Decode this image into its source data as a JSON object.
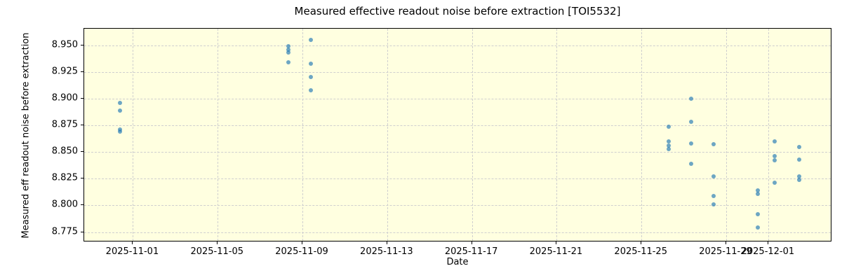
{
  "chart_data": {
    "type": "scatter",
    "title": "Measured effective readout noise before extraction [TOI5532]",
    "xlabel": "Date",
    "ylabel": "Measured eff readout noise before extraction",
    "grid": "dashed",
    "legend": "none",
    "x_axis": {
      "unit": "days since 2025-11-01",
      "range": [
        -2.3,
        33.0
      ],
      "ticks": [
        {
          "label": "2025-11-01",
          "day": 0
        },
        {
          "label": "2025-11-05",
          "day": 4
        },
        {
          "label": "2025-11-09",
          "day": 8
        },
        {
          "label": "2025-11-13",
          "day": 12
        },
        {
          "label": "2025-11-17",
          "day": 16
        },
        {
          "label": "2025-11-21",
          "day": 20
        },
        {
          "label": "2025-11-25",
          "day": 24
        },
        {
          "label": "2025-11-29",
          "day": 28
        },
        {
          "label": "2025-12-01",
          "day": 30
        }
      ]
    },
    "y_axis": {
      "range": [
        8.7655,
        8.9655
      ],
      "ticks": [
        {
          "label": "8.775",
          "value": 8.775
        },
        {
          "label": "8.800",
          "value": 8.8
        },
        {
          "label": "8.825",
          "value": 8.825
        },
        {
          "label": "8.850",
          "value": 8.85
        },
        {
          "label": "8.875",
          "value": 8.875
        },
        {
          "label": "8.900",
          "value": 8.9
        },
        {
          "label": "8.925",
          "value": 8.925
        },
        {
          "label": "8.950",
          "value": 8.95
        }
      ]
    },
    "series": [
      {
        "name": "measured-readout-noise",
        "groups": [
          {
            "date": "2025-10-31",
            "day": -0.6,
            "values": [
              8.896,
              8.889,
              8.871,
              8.869
            ]
          },
          {
            "date": "2025-11-08",
            "day": 7.35,
            "values": [
              8.949,
              8.946,
              8.943,
              8.934
            ]
          },
          {
            "date": "2025-11-09",
            "day": 8.4,
            "values": [
              8.955,
              8.933,
              8.92,
              8.908
            ]
          },
          {
            "date": "2025-11-26",
            "day": 25.3,
            "values": [
              8.874,
              8.86,
              8.856,
              8.853
            ]
          },
          {
            "date": "2025-11-27",
            "day": 26.35,
            "values": [
              8.9,
              8.878,
              8.858,
              8.839
            ]
          },
          {
            "date": "2025-11-28",
            "day": 27.4,
            "values": [
              8.857,
              8.827,
              8.809,
              8.801
            ]
          },
          {
            "date": "2025-11-30",
            "day": 29.5,
            "values": [
              8.814,
              8.811,
              8.792,
              8.779
            ]
          },
          {
            "date": "2025-12-01",
            "day": 30.3,
            "values": [
              8.86,
              8.846,
              8.842,
              8.821
            ]
          },
          {
            "date": "2025-12-02",
            "day": 31.45,
            "values": [
              8.855,
              8.843,
              8.827,
              8.824
            ]
          }
        ]
      }
    ],
    "style": {
      "plot_background": "#ffffe0",
      "figure_background": "#ffffff",
      "marker_color": "#1f77b4",
      "marker_alpha": 0.65,
      "grid_color": "#cfcfcf",
      "spine_color": "#000000"
    }
  }
}
